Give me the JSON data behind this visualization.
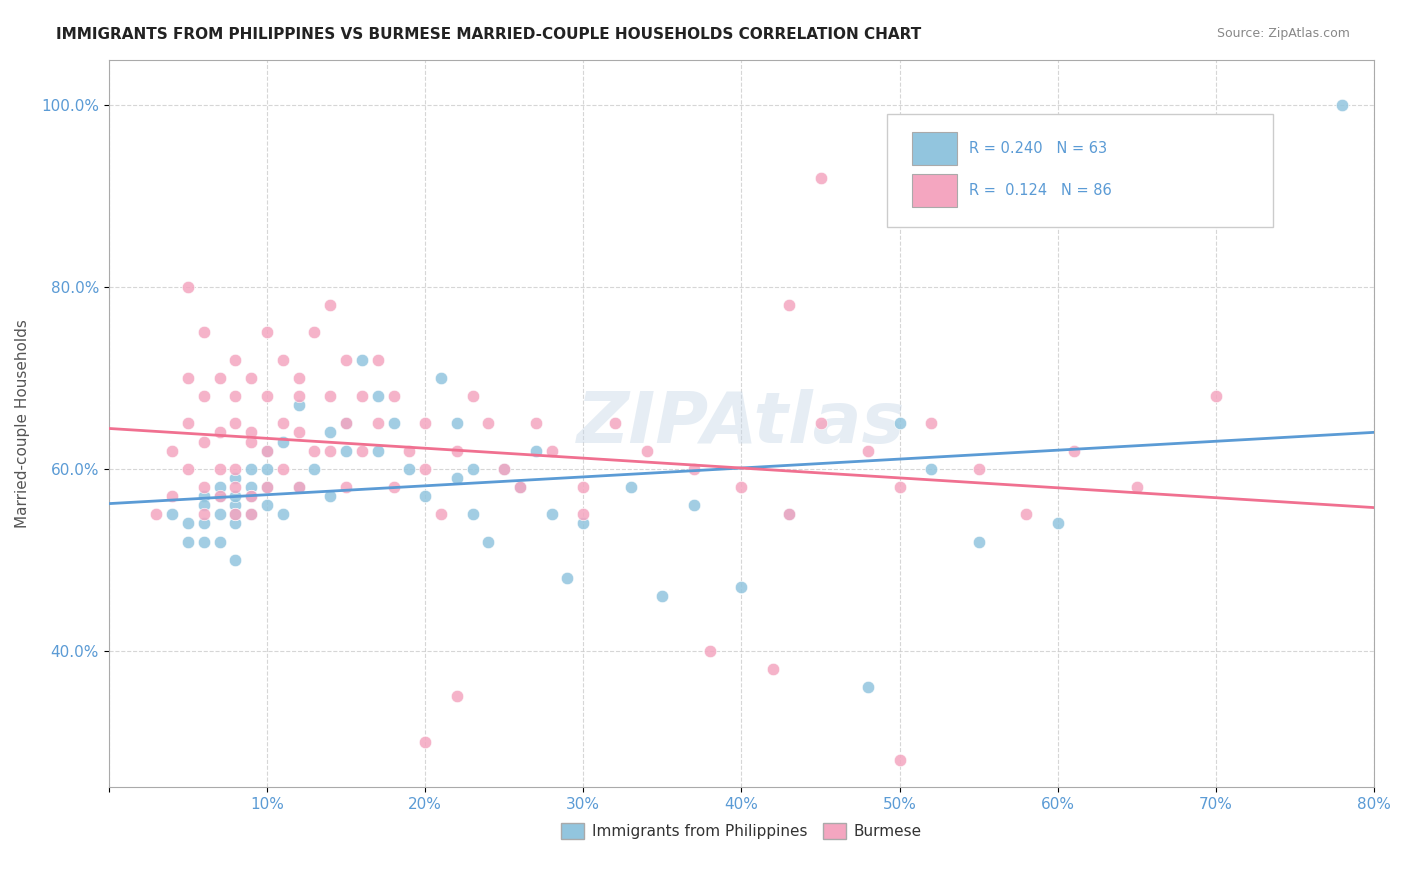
{
  "title": "IMMIGRANTS FROM PHILIPPINES VS BURMESE MARRIED-COUPLE HOUSEHOLDS CORRELATION CHART",
  "source": "Source: ZipAtlas.com",
  "ylabel": "Married-couple Households",
  "legend_blue_r": "R = 0.240",
  "legend_blue_n": "N = 63",
  "legend_pink_r": "R =  0.124",
  "legend_pink_n": "N = 86",
  "watermark": "ZIPAtlas",
  "blue_color": "#92c5de",
  "pink_color": "#f4a6c0",
  "blue_line_color": "#5b9bd5",
  "pink_line_color": "#f07090",
  "background_color": "#ffffff",
  "grid_color": "#cccccc",
  "xlim": [
    0.0,
    0.8
  ],
  "ylim": [
    0.25,
    1.05
  ],
  "blue_scatter_x": [
    0.04,
    0.05,
    0.05,
    0.06,
    0.06,
    0.06,
    0.06,
    0.07,
    0.07,
    0.07,
    0.07,
    0.08,
    0.08,
    0.08,
    0.08,
    0.08,
    0.08,
    0.09,
    0.09,
    0.09,
    0.09,
    0.1,
    0.1,
    0.1,
    0.1,
    0.11,
    0.11,
    0.12,
    0.12,
    0.13,
    0.14,
    0.14,
    0.15,
    0.15,
    0.16,
    0.17,
    0.17,
    0.18,
    0.19,
    0.2,
    0.21,
    0.22,
    0.22,
    0.23,
    0.23,
    0.24,
    0.25,
    0.26,
    0.27,
    0.28,
    0.29,
    0.3,
    0.33,
    0.35,
    0.37,
    0.4,
    0.43,
    0.48,
    0.5,
    0.52,
    0.55,
    0.6,
    0.78
  ],
  "blue_scatter_y": [
    0.55,
    0.52,
    0.54,
    0.57,
    0.54,
    0.56,
    0.52,
    0.57,
    0.55,
    0.58,
    0.52,
    0.59,
    0.56,
    0.54,
    0.5,
    0.55,
    0.57,
    0.58,
    0.55,
    0.57,
    0.6,
    0.6,
    0.58,
    0.62,
    0.56,
    0.55,
    0.63,
    0.67,
    0.58,
    0.6,
    0.64,
    0.57,
    0.65,
    0.62,
    0.72,
    0.68,
    0.62,
    0.65,
    0.6,
    0.57,
    0.7,
    0.65,
    0.59,
    0.6,
    0.55,
    0.52,
    0.6,
    0.58,
    0.62,
    0.55,
    0.48,
    0.54,
    0.58,
    0.46,
    0.56,
    0.47,
    0.55,
    0.36,
    0.65,
    0.6,
    0.52,
    0.54,
    1.0
  ],
  "pink_scatter_x": [
    0.03,
    0.04,
    0.04,
    0.05,
    0.05,
    0.05,
    0.05,
    0.06,
    0.06,
    0.06,
    0.06,
    0.06,
    0.07,
    0.07,
    0.07,
    0.07,
    0.08,
    0.08,
    0.08,
    0.08,
    0.08,
    0.08,
    0.09,
    0.09,
    0.09,
    0.09,
    0.09,
    0.1,
    0.1,
    0.1,
    0.1,
    0.11,
    0.11,
    0.11,
    0.12,
    0.12,
    0.12,
    0.12,
    0.13,
    0.13,
    0.14,
    0.14,
    0.14,
    0.15,
    0.15,
    0.15,
    0.16,
    0.16,
    0.17,
    0.17,
    0.18,
    0.18,
    0.19,
    0.2,
    0.2,
    0.21,
    0.22,
    0.23,
    0.24,
    0.25,
    0.26,
    0.27,
    0.28,
    0.3,
    0.32,
    0.34,
    0.37,
    0.4,
    0.43,
    0.45,
    0.48,
    0.5,
    0.52,
    0.55,
    0.58,
    0.61,
    0.65,
    0.7,
    0.38,
    0.42,
    0.2,
    0.22,
    0.5,
    0.3,
    0.45,
    0.43
  ],
  "pink_scatter_y": [
    0.55,
    0.62,
    0.57,
    0.65,
    0.6,
    0.7,
    0.8,
    0.63,
    0.55,
    0.75,
    0.58,
    0.68,
    0.64,
    0.57,
    0.7,
    0.6,
    0.65,
    0.58,
    0.72,
    0.55,
    0.6,
    0.68,
    0.63,
    0.57,
    0.7,
    0.64,
    0.55,
    0.68,
    0.62,
    0.75,
    0.58,
    0.65,
    0.6,
    0.72,
    0.68,
    0.58,
    0.64,
    0.7,
    0.62,
    0.75,
    0.68,
    0.62,
    0.78,
    0.65,
    0.72,
    0.58,
    0.68,
    0.62,
    0.65,
    0.72,
    0.68,
    0.58,
    0.62,
    0.65,
    0.6,
    0.55,
    0.62,
    0.68,
    0.65,
    0.6,
    0.58,
    0.65,
    0.62,
    0.58,
    0.65,
    0.62,
    0.6,
    0.58,
    0.55,
    0.65,
    0.62,
    0.58,
    0.65,
    0.6,
    0.55,
    0.62,
    0.58,
    0.68,
    0.4,
    0.38,
    0.3,
    0.35,
    0.28,
    0.55,
    0.92,
    0.78
  ]
}
